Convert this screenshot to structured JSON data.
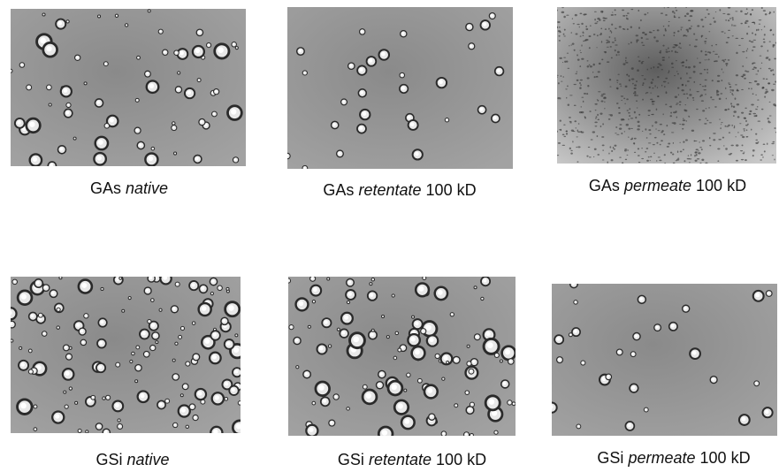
{
  "panels": [
    {
      "sample": "GAs",
      "state": "native"
    },
    {
      "sample": "GAs",
      "state": "retentate",
      "cutoff": "100 kD"
    },
    {
      "sample": "GAs",
      "state": "permeate",
      "cutoff": "100 kD"
    },
    {
      "sample": "GSi",
      "state": "native"
    },
    {
      "sample": "GSi",
      "state": "retentate",
      "cutoff": "100 kD"
    },
    {
      "sample": "GSi",
      "state": "permeate",
      "cutoff": "100 kD"
    }
  ]
}
